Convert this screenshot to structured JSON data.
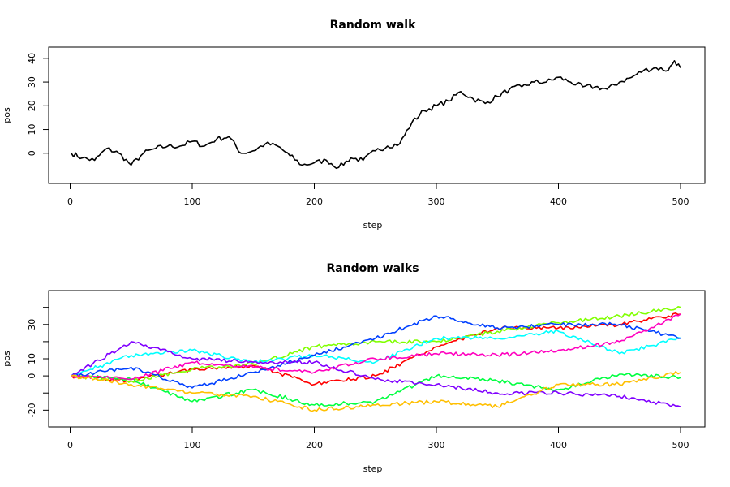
{
  "chart_data": [
    {
      "type": "line",
      "title": "Random walk",
      "xlabel": "step",
      "ylabel": "pos",
      "xlim": [
        1,
        500
      ],
      "ylim": [
        -10,
        42
      ],
      "xticks": [
        0,
        100,
        200,
        300,
        400,
        500
      ],
      "yticks": [
        0,
        10,
        20,
        30,
        40
      ],
      "yticklabels": [
        "0",
        "10",
        "20",
        "30",
        "40"
      ],
      "series": [
        {
          "color": "#000000",
          "x": [
            1,
            10,
            20,
            30,
            40,
            50,
            60,
            70,
            80,
            90,
            100,
            110,
            120,
            130,
            140,
            150,
            160,
            170,
            180,
            190,
            200,
            210,
            220,
            230,
            240,
            250,
            260,
            270,
            280,
            290,
            300,
            310,
            320,
            330,
            340,
            350,
            360,
            370,
            380,
            390,
            400,
            410,
            420,
            430,
            440,
            450,
            460,
            470,
            480,
            490,
            495,
            500
          ],
          "values": [
            0,
            -2,
            -3,
            2,
            0,
            -5,
            0,
            2,
            3,
            3,
            5,
            3,
            6,
            7,
            0,
            1,
            4,
            3,
            -1,
            -5,
            -4,
            -3,
            -6,
            -2,
            -3,
            1,
            3,
            4,
            13,
            18,
            20,
            22,
            26,
            23,
            21,
            24,
            27,
            28,
            30,
            30,
            32,
            30,
            28,
            28,
            27,
            30,
            32,
            35,
            36,
            35,
            39,
            36
          ]
        }
      ]
    },
    {
      "type": "line",
      "title": "Random walks",
      "xlabel": "step",
      "ylabel": "pos",
      "xlim": [
        1,
        500
      ],
      "ylim": [
        -26,
        46
      ],
      "xticks": [
        0,
        100,
        200,
        300,
        400,
        500
      ],
      "yticks": [
        -20,
        -10,
        0,
        10,
        20,
        30,
        40
      ],
      "yticklabels": [
        "-20",
        "",
        "0",
        "10",
        "",
        "30",
        ""
      ],
      "series": [
        {
          "color": "#ff0000",
          "x": [
            1,
            50,
            100,
            150,
            200,
            250,
            300,
            350,
            400,
            450,
            500
          ],
          "values": [
            0,
            -3,
            4,
            6,
            -5,
            0,
            17,
            28,
            28,
            30,
            36
          ]
        },
        {
          "color": "#80ff00",
          "x": [
            1,
            50,
            100,
            150,
            200,
            250,
            300,
            350,
            400,
            450,
            500
          ],
          "values": [
            0,
            -3,
            4,
            7,
            17,
            20,
            20,
            26,
            31,
            35,
            40
          ]
        },
        {
          "color": "#00ff40",
          "x": [
            1,
            50,
            100,
            150,
            200,
            250,
            300,
            350,
            400,
            450,
            500
          ],
          "values": [
            0,
            -2,
            -15,
            -8,
            -17,
            -15,
            0,
            -3,
            -8,
            1,
            -1
          ]
        },
        {
          "color": "#00ffff",
          "x": [
            1,
            50,
            100,
            150,
            200,
            250,
            300,
            350,
            400,
            450,
            500
          ],
          "values": [
            0,
            12,
            15,
            8,
            12,
            8,
            22,
            22,
            26,
            13,
            22
          ]
        },
        {
          "color": "#0040ff",
          "x": [
            1,
            50,
            100,
            150,
            200,
            250,
            300,
            350,
            400,
            450,
            500
          ],
          "values": [
            0,
            5,
            -7,
            2,
            12,
            22,
            35,
            28,
            30,
            30,
            22
          ]
        },
        {
          "color": "#8000ff",
          "x": [
            1,
            50,
            100,
            150,
            200,
            250,
            300,
            350,
            400,
            450,
            500
          ],
          "values": [
            0,
            20,
            10,
            8,
            8,
            -2,
            -5,
            -10,
            -10,
            -12,
            -18
          ]
        },
        {
          "color": "#ff00bf",
          "x": [
            1,
            50,
            100,
            150,
            200,
            250,
            300,
            350,
            400,
            450,
            500
          ],
          "values": [
            0,
            -2,
            8,
            5,
            2,
            10,
            13,
            12,
            15,
            20,
            36
          ]
        },
        {
          "color": "#ffbf00",
          "x": [
            1,
            50,
            100,
            150,
            200,
            250,
            300,
            350,
            400,
            450,
            500
          ],
          "values": [
            0,
            -5,
            -10,
            -12,
            -20,
            -17,
            -15,
            -18,
            -5,
            -5,
            2
          ]
        }
      ]
    }
  ]
}
